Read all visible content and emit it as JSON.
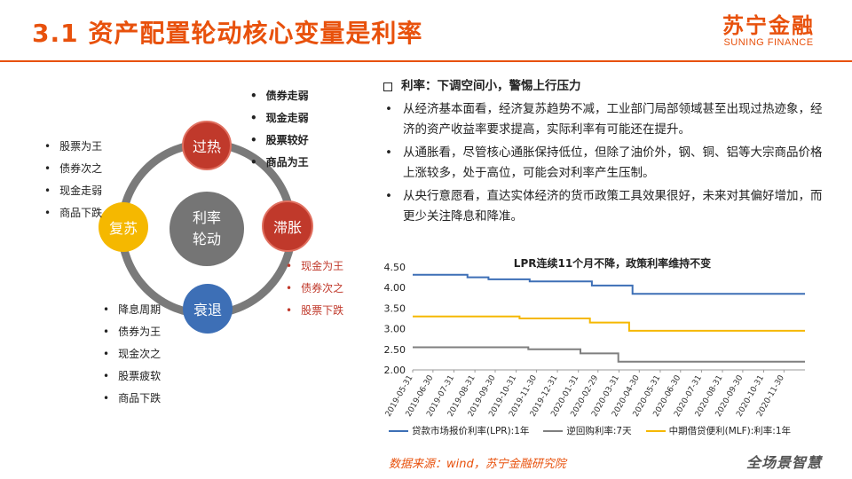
{
  "header": {
    "title": "3.1 资产配置轮动核心变量是利率",
    "logo_cn": "苏宁金融",
    "logo_en": "SUNING FINANCE"
  },
  "cycle": {
    "center": [
      "利率",
      "轮动"
    ],
    "phases": {
      "overheat": "过热",
      "stagflation": "滞胀",
      "recession": "衰退",
      "recovery": "复苏"
    },
    "lists": {
      "overheat": [
        "债券走弱",
        "现金走弱",
        "股票较好",
        "商品为王"
      ],
      "recovery": [
        "股票为王",
        "债券次之",
        "现金走弱",
        "商品下跌"
      ],
      "stagflation": [
        "现金为王",
        "债券次之",
        "股票下跌"
      ],
      "recession": [
        "降息周期",
        "债券为王",
        "现金次之",
        "股票疲软",
        "商品下跌"
      ]
    },
    "colors": {
      "overheat": "#C0392B",
      "stagflation": "#C0392B",
      "recession": "#3D6FB6",
      "recovery": "#F5B800",
      "center": "#757575"
    }
  },
  "text": {
    "heading": "利率：下调空间小，警惕上行压力",
    "bullets": [
      "从经济基本面看，经济复苏趋势不减，工业部门局部领域甚至出现过热迹象，经济的资产收益率要求提高，实际利率有可能还在提升。",
      "从通胀看，尽管核心通胀保持低位，但除了油价外，钢、铜、铝等大宗商品价格上涨较多，处于高位，可能会对利率产生压制。",
      "从央行意愿看，直达实体经济的货币政策工具效果很好，未来对其偏好增加，而更少关注降息和降准。"
    ]
  },
  "chart_data": {
    "type": "line",
    "title": "LPR连续11个月不降，政策利率维持不变",
    "x": [
      "2019-05-31",
      "2019-06-30",
      "2019-07-31",
      "2019-08-31",
      "2019-09-30",
      "2019-10-31",
      "2019-11-30",
      "2019-12-31",
      "2020-01-31",
      "2020-02-29",
      "2020-03-31",
      "2020-04-30",
      "2020-05-31",
      "2020-06-30",
      "2020-07-31",
      "2020-08-31",
      "2020-09-30",
      "2020-10-31",
      "2020-11-30"
    ],
    "ylim": [
      2.0,
      4.5
    ],
    "yticks": [
      "4.50",
      "4.00",
      "3.50",
      "3.00",
      "2.50",
      "2.00"
    ],
    "series": [
      {
        "name": "贷款市场报价利率(LPR):1年",
        "color": "#3D6FB6",
        "points": [
          [
            "2019-05-31",
            4.31
          ],
          [
            "2019-08-20",
            4.31
          ],
          [
            "2019-08-20",
            4.25
          ],
          [
            "2019-09-20",
            4.25
          ],
          [
            "2019-09-20",
            4.2
          ],
          [
            "2019-11-20",
            4.2
          ],
          [
            "2019-11-20",
            4.15
          ],
          [
            "2020-02-20",
            4.15
          ],
          [
            "2020-02-20",
            4.05
          ],
          [
            "2020-04-20",
            4.05
          ],
          [
            "2020-04-20",
            3.85
          ],
          [
            "2020-12-31",
            3.85
          ]
        ]
      },
      {
        "name": "逆回购利率:7天",
        "color": "#7F7F7F",
        "points": [
          [
            "2019-05-31",
            2.55
          ],
          [
            "2019-11-18",
            2.55
          ],
          [
            "2019-11-18",
            2.5
          ],
          [
            "2020-02-03",
            2.5
          ],
          [
            "2020-02-03",
            2.4
          ],
          [
            "2020-03-30",
            2.4
          ],
          [
            "2020-03-30",
            2.2
          ],
          [
            "2020-12-31",
            2.2
          ]
        ]
      },
      {
        "name": "中期借贷便利(MLF):利率:1年",
        "color": "#F5B800",
        "points": [
          [
            "2019-05-31",
            3.3
          ],
          [
            "2019-11-05",
            3.3
          ],
          [
            "2019-11-05",
            3.25
          ],
          [
            "2020-02-17",
            3.25
          ],
          [
            "2020-02-17",
            3.15
          ],
          [
            "2020-04-15",
            3.15
          ],
          [
            "2020-04-15",
            2.95
          ],
          [
            "2020-12-31",
            2.95
          ]
        ]
      }
    ],
    "legend": "bottom",
    "grid": false
  },
  "footer": {
    "source": "数据来源：wind，苏宁金融研究院",
    "slogan": "全场景智慧"
  }
}
